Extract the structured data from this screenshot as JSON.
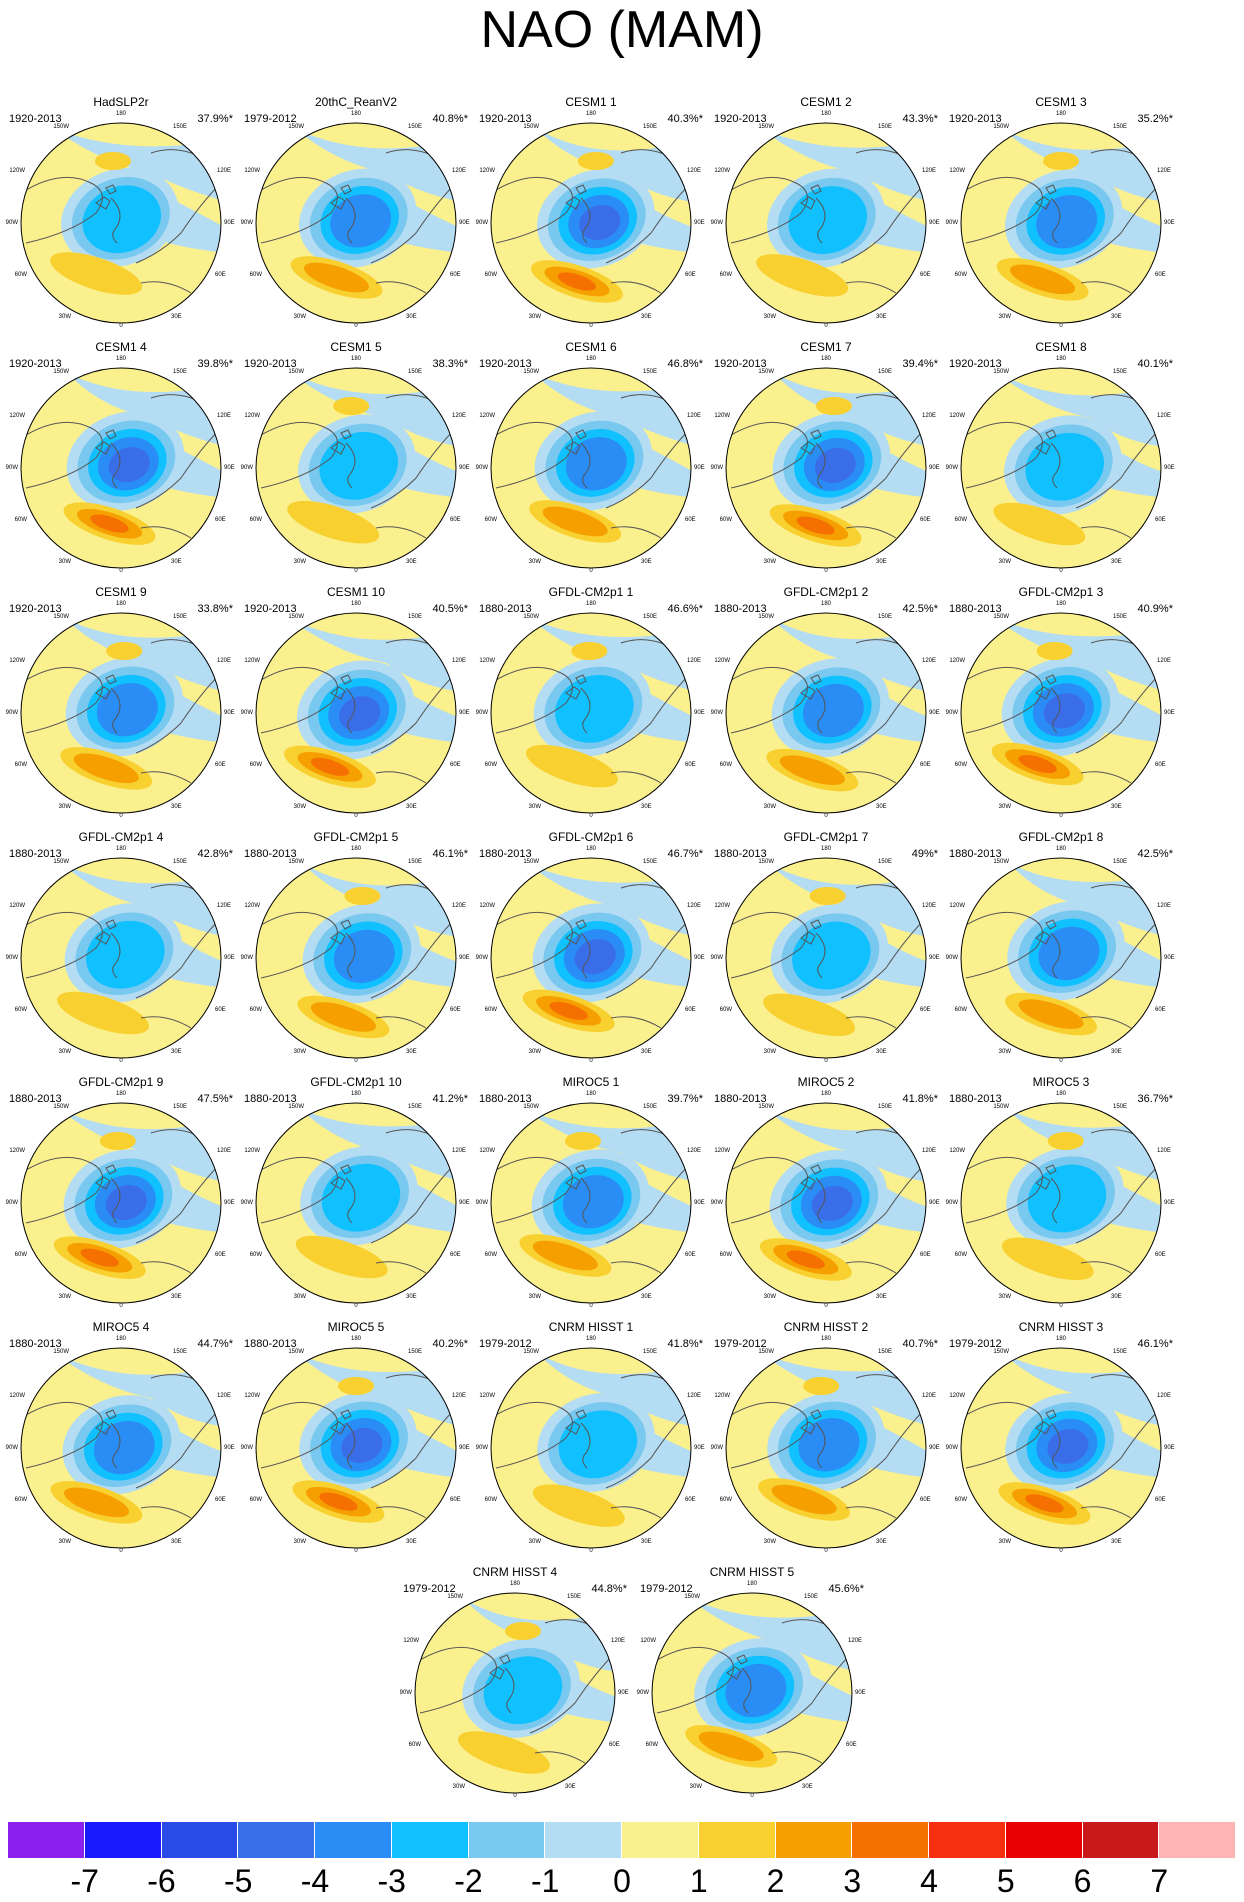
{
  "title": "NAO (MAM)",
  "panels": [
    {
      "name": "HadSLP2r",
      "period": "1920-2013",
      "variance": "37.9%*"
    },
    {
      "name": "20thC_ReanV2",
      "period": "1979-2012",
      "variance": "40.8%*"
    },
    {
      "name": "CESM1 1",
      "period": "1920-2013",
      "variance": "40.3%*"
    },
    {
      "name": "CESM1 2",
      "period": "1920-2013",
      "variance": "43.3%*"
    },
    {
      "name": "CESM1 3",
      "period": "1920-2013",
      "variance": "35.2%*"
    },
    {
      "name": "CESM1 4",
      "period": "1920-2013",
      "variance": "39.8%*"
    },
    {
      "name": "CESM1 5",
      "period": "1920-2013",
      "variance": "38.3%*"
    },
    {
      "name": "CESM1 6",
      "period": "1920-2013",
      "variance": "46.8%*"
    },
    {
      "name": "CESM1 7",
      "period": "1920-2013",
      "variance": "39.4%*"
    },
    {
      "name": "CESM1 8",
      "period": "1920-2013",
      "variance": "40.1%*"
    },
    {
      "name": "CESM1 9",
      "period": "1920-2013",
      "variance": "33.8%*"
    },
    {
      "name": "CESM1 10",
      "period": "1920-2013",
      "variance": "40.5%*"
    },
    {
      "name": "GFDL-CM2p1 1",
      "period": "1880-2013",
      "variance": "46.6%*"
    },
    {
      "name": "GFDL-CM2p1 2",
      "period": "1880-2013",
      "variance": "42.5%*"
    },
    {
      "name": "GFDL-CM2p1 3",
      "period": "1880-2013",
      "variance": "40.9%*"
    },
    {
      "name": "GFDL-CM2p1 4",
      "period": "1880-2013",
      "variance": "42.8%*"
    },
    {
      "name": "GFDL-CM2p1 5",
      "period": "1880-2013",
      "variance": "46.1%*"
    },
    {
      "name": "GFDL-CM2p1 6",
      "period": "1880-2013",
      "variance": "46.7%*"
    },
    {
      "name": "GFDL-CM2p1 7",
      "period": "1880-2013",
      "variance": "49%*"
    },
    {
      "name": "GFDL-CM2p1 8",
      "period": "1880-2013",
      "variance": "42.5%*"
    },
    {
      "name": "GFDL-CM2p1 9",
      "period": "1880-2013",
      "variance": "47.5%*"
    },
    {
      "name": "GFDL-CM2p1 10",
      "period": "1880-2013",
      "variance": "41.2%*"
    },
    {
      "name": "MIROC5 1",
      "period": "1880-2013",
      "variance": "39.7%*"
    },
    {
      "name": "MIROC5 2",
      "period": "1880-2013",
      "variance": "41.8%*"
    },
    {
      "name": "MIROC5 3",
      "period": "1880-2013",
      "variance": "36.7%*"
    },
    {
      "name": "MIROC5 4",
      "period": "1880-2013",
      "variance": "44.7%*"
    },
    {
      "name": "MIROC5 5",
      "period": "1880-2013",
      "variance": "40.2%*"
    },
    {
      "name": "CNRM HISST 1",
      "period": "1979-2012",
      "variance": "41.8%*"
    },
    {
      "name": "CNRM HISST 2",
      "period": "1979-2012",
      "variance": "40.7%*"
    },
    {
      "name": "CNRM HISST 3",
      "period": "1979-2012",
      "variance": "46.1%*"
    },
    {
      "name": "CNRM HISST 4",
      "period": "1979-2012",
      "variance": "44.8%*"
    },
    {
      "name": "CNRM HISST 5",
      "period": "1979-2012",
      "variance": "45.6%*"
    }
  ],
  "map_labels": {
    "top": "180",
    "nw": "150W",
    "ne": "150E",
    "wnw": "120W",
    "ene": "120E",
    "w": "90W",
    "e": "90E",
    "wsw": "60W",
    "ese": "60E",
    "sw": "30W",
    "se": "30E",
    "bottom": "0"
  },
  "colorbar": {
    "ticks": [
      "-7",
      "-6",
      "-5",
      "-4",
      "-3",
      "-2",
      "-1",
      "0",
      "1",
      "2",
      "3",
      "4",
      "5",
      "6",
      "7"
    ],
    "colors": [
      "#8a20f0",
      "#1a1aff",
      "#2a4ae8",
      "#3a6ee8",
      "#2a8cf5",
      "#10c0ff",
      "#78c8f0",
      "#b4dcf2",
      "#fbf08e",
      "#f8d030",
      "#f5a000",
      "#f57000",
      "#f53010",
      "#e80000",
      "#c81a1a",
      "#fcb4b4"
    ]
  }
}
